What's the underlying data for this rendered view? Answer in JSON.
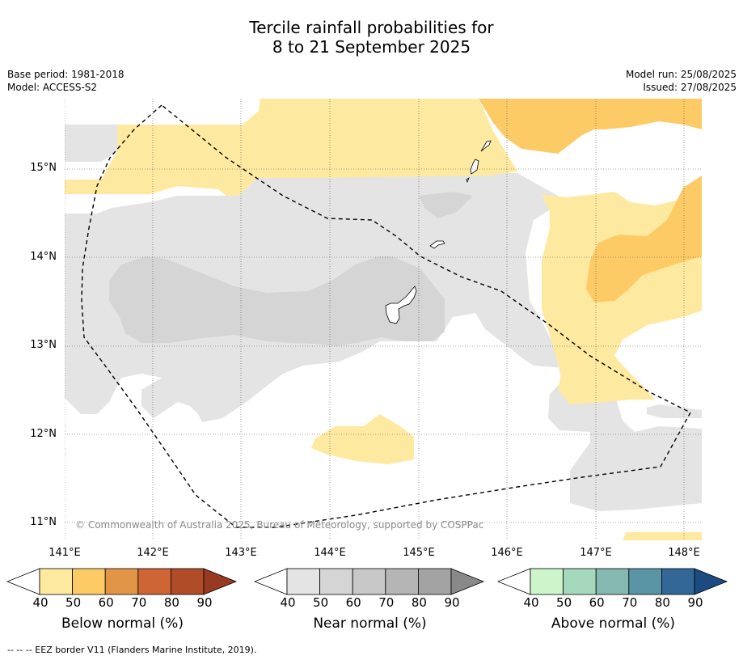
{
  "title_line1": "Tercile rainfall probabilities for",
  "title_line2": "8 to 21 September 2025",
  "meta_left": {
    "base_period": "Base period: 1981-2018",
    "model": "Model: ACCESS-S2"
  },
  "meta_right": {
    "model_run": "Model run: 25/08/2025",
    "issued": "Issued: 27/08/2025"
  },
  "lat_labels": [
    "15°N",
    "14°N",
    "13°N",
    "12°N",
    "11°N"
  ],
  "lon_labels": [
    "141°E",
    "142°E",
    "143°E",
    "144°E",
    "145°E",
    "146°E",
    "147°E",
    "148°E"
  ],
  "copyright": "© Commonwealth of Australia 2025, Bureau of Meteorology, supported by COSPPac",
  "colorbars": [
    {
      "title": "Below normal (%)",
      "ticks": [
        "40",
        "50",
        "60",
        "70",
        "80",
        "90"
      ],
      "colors": [
        "#fde9a0",
        "#fdcb66",
        "#e19647",
        "#cd6534",
        "#b14c28",
        "#973a21"
      ]
    },
    {
      "title": "Near normal (%)",
      "ticks": [
        "40",
        "50",
        "60",
        "70",
        "80",
        "90"
      ],
      "colors": [
        "#e4e4e4",
        "#d5d5d5",
        "#c8c8c8",
        "#b5b5b5",
        "#a3a3a3",
        "#898989"
      ]
    },
    {
      "title": "Above normal (%)",
      "ticks": [
        "40",
        "50",
        "60",
        "70",
        "80",
        "90"
      ],
      "colors": [
        "#ccf5cb",
        "#a6d8be",
        "#86b8b2",
        "#5a95a6",
        "#336896",
        "#1c4b81"
      ]
    }
  ],
  "footnote": "--  --  -- EEZ border V11 (Flanders Marine Institute, 2019).",
  "colors": {
    "below_40": "#fde9a0",
    "below_50": "#fdcb66",
    "near_40": "#e4e4e4",
    "near_50": "#d5d5d5"
  }
}
